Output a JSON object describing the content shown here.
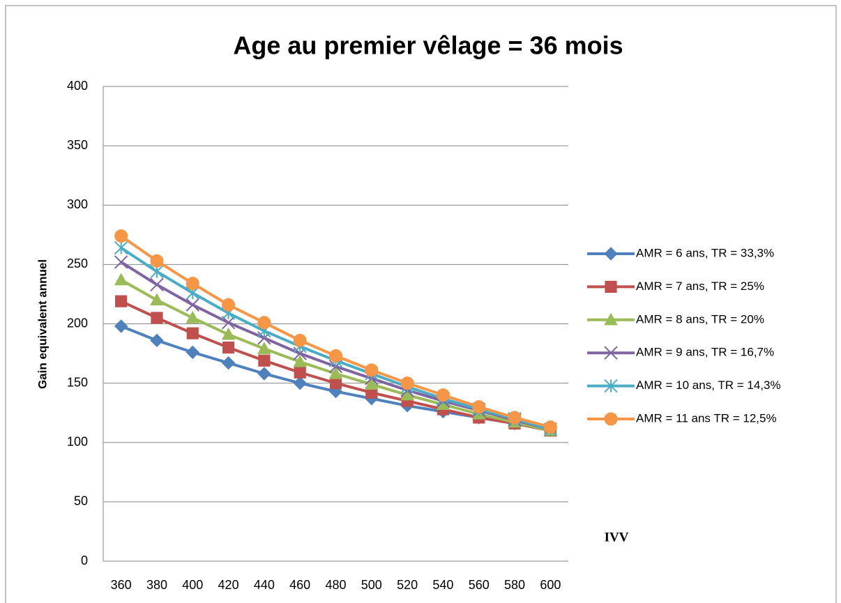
{
  "chart_data": {
    "type": "line",
    "title": "Age au premier vêlage = 36 mois",
    "ylabel": "Gain equivalent annuel",
    "xlabel": "IVV",
    "categories": [
      "360",
      "380",
      "400",
      "420",
      "440",
      "460",
      "480",
      "500",
      "520",
      "540",
      "560",
      "580",
      "600"
    ],
    "ylim": [
      0,
      400
    ],
    "yticks": [
      0,
      50,
      100,
      150,
      200,
      250,
      300,
      350,
      400
    ],
    "grid": true,
    "legend": "right",
    "series": [
      {
        "name": "AMR = 6 ans, TR = 33,3%",
        "color": "#4f81bd",
        "marker": "diamond",
        "values": [
          198,
          186,
          176,
          167,
          158,
          150,
          143,
          137,
          131,
          126,
          121,
          116,
          111
        ]
      },
      {
        "name": "AMR = 7 ans, TR = 25%",
        "color": "#c0504d",
        "marker": "square",
        "values": [
          219,
          205,
          192,
          180,
          169,
          159,
          150,
          142,
          135,
          128,
          121,
          116,
          110
        ]
      },
      {
        "name": "AMR = 8 ans, TR = 20%",
        "color": "#9bbb59",
        "marker": "triangle",
        "values": [
          237,
          220,
          205,
          191,
          179,
          168,
          158,
          149,
          140,
          132,
          124,
          117,
          110
        ]
      },
      {
        "name": "AMR = 9 ans, TR = 16,7%",
        "color": "#8064a2",
        "marker": "x",
        "values": [
          252,
          233,
          216,
          201,
          188,
          175,
          164,
          154,
          144,
          135,
          127,
          119,
          111
        ]
      },
      {
        "name": "AMR = 10 ans, TR = 14,3%",
        "color": "#4bacc6",
        "marker": "star",
        "values": [
          264,
          244,
          226,
          209,
          194,
          181,
          169,
          158,
          147,
          137,
          128,
          120,
          111
        ]
      },
      {
        "name": "AMR = 11 ans TR = 12,5%",
        "color": "#f79646",
        "marker": "circle",
        "values": [
          274,
          253,
          234,
          216,
          201,
          186,
          173,
          161,
          150,
          140,
          130,
          121,
          113
        ]
      }
    ]
  }
}
